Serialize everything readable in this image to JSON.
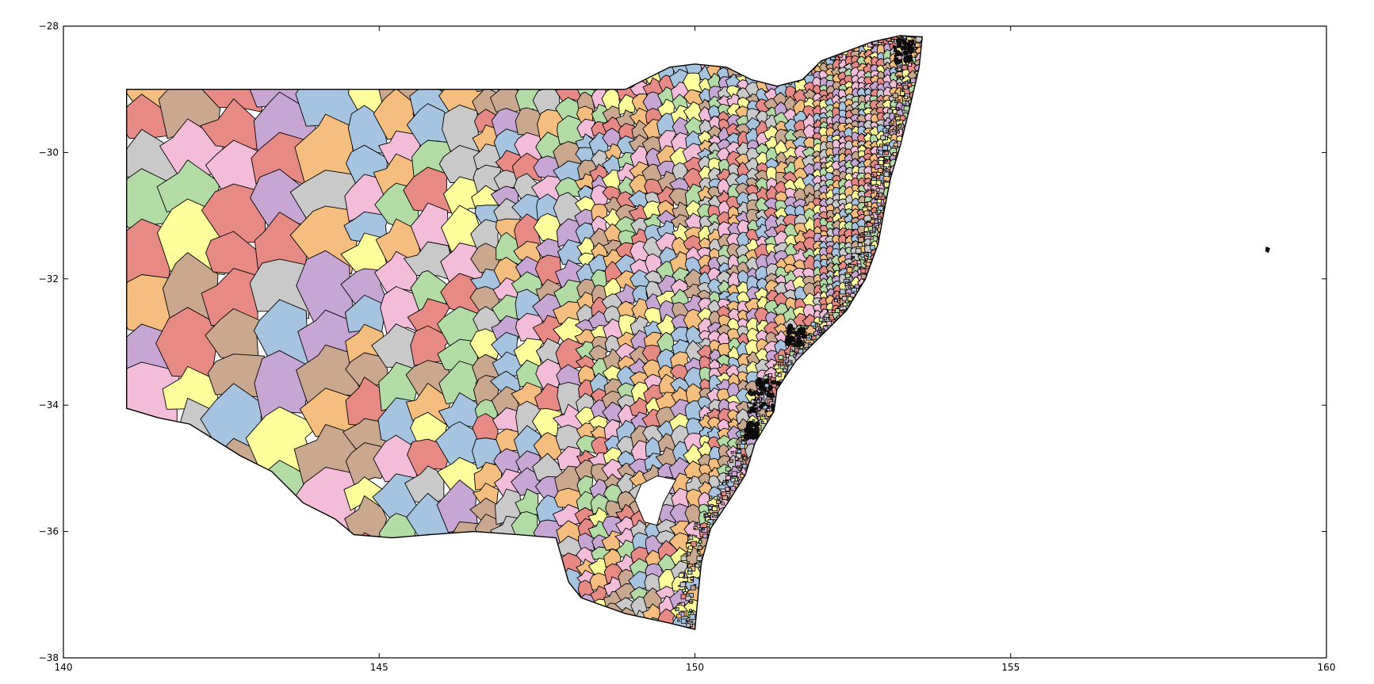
{
  "chart_data": {
    "type": "choropleth",
    "xlim": [
      140,
      160
    ],
    "ylim": [
      -38,
      -28
    ],
    "xticks": [
      "140",
      "145",
      "150",
      "155",
      "160"
    ],
    "yticks": [
      "−28",
      "−30",
      "−32",
      "−34",
      "−36",
      "−38"
    ],
    "grid": false,
    "legend": "none",
    "palette": [
      "#e78a85",
      "#a6c4e0",
      "#b3dba6",
      "#c8a6d4",
      "#f5bd7e",
      "#fefe9c",
      "#c9a88f",
      "#f3bcd8",
      "#c9c9c9"
    ],
    "boundary_color": "#000000",
    "background": "#ffffff"
  }
}
